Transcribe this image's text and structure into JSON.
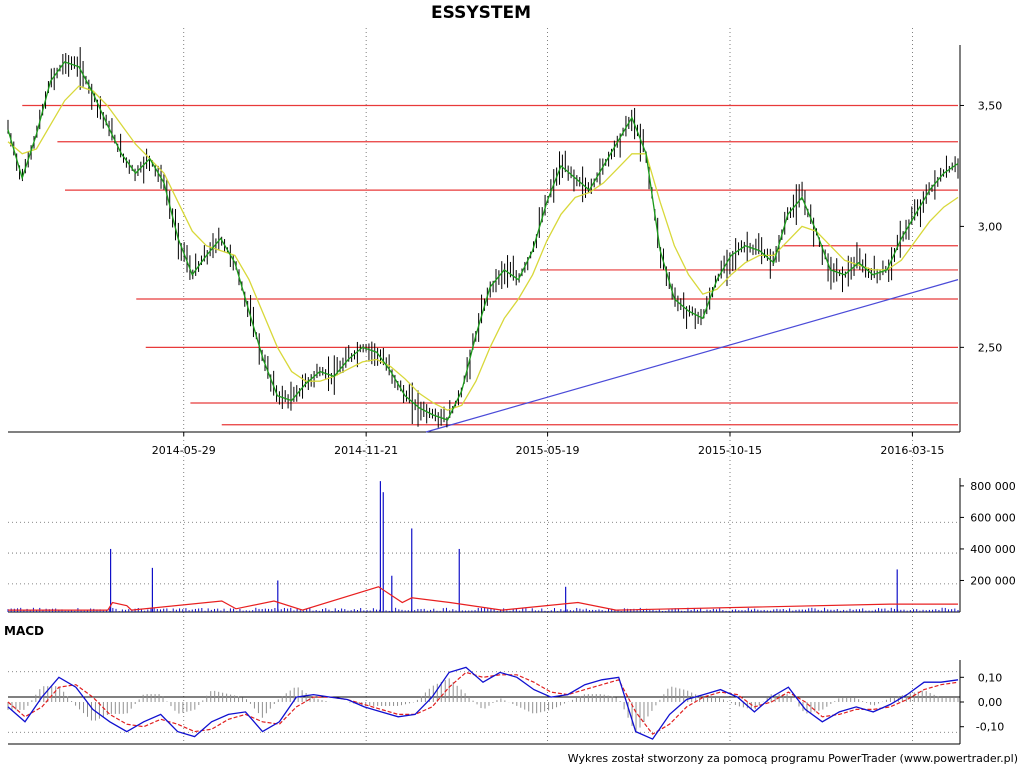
{
  "title": "ESSYSTEM",
  "footer": "Wykres został stworzony za pomocą programu PowerTrader (www.powertrader.pl)",
  "colors": {
    "candle": "#000000",
    "ma_fast": "#1a9a1a",
    "ma_slow": "#d8d83a",
    "level_line": "#e83a3a",
    "trend_line": "#4a4ad8",
    "volume": "#1010c8",
    "volume_avg": "#e82020",
    "macd_line": "#1010d0",
    "macd_signal": "#e02020",
    "histogram": "#909090",
    "grid": "#606060"
  },
  "chart_data": [
    {
      "type": "line",
      "pane": "price",
      "title": "ESSYSTEM",
      "x_ticks": [
        "2014-05-29",
        "2014-11-21",
        "2015-05-19",
        "2015-10-15",
        "2016-03-15"
      ],
      "y_ticks": [
        "3,50",
        "3,00",
        "2,50"
      ],
      "ylim": [
        2.15,
        3.75
      ],
      "grid": "vertical dotted",
      "series": [
        {
          "values": [
            3.4,
            3.2,
            3.38,
            3.6,
            3.68,
            3.66,
            3.55,
            3.42,
            3.3,
            3.22,
            3.28,
            3.18,
            2.95,
            2.8,
            2.88,
            2.95,
            2.85,
            2.65,
            2.45,
            2.3,
            2.28,
            2.35,
            2.4,
            2.38,
            2.45,
            2.5,
            2.48,
            2.4,
            2.3,
            2.25,
            2.22,
            2.2,
            2.32,
            2.55,
            2.75,
            2.82,
            2.78,
            2.9,
            3.1,
            3.25,
            3.2,
            3.15,
            3.25,
            3.35,
            3.45,
            3.3,
            2.9,
            2.7,
            2.65,
            2.62,
            2.78,
            2.88,
            2.92,
            2.9,
            2.85,
            3.05,
            3.12,
            2.98,
            2.82,
            2.8,
            2.85,
            2.8,
            2.82,
            2.95,
            3.05,
            3.15,
            3.22,
            3.26
          ]
        },
        {
          "values": [
            3.35,
            3.3,
            3.32,
            3.42,
            3.52,
            3.58,
            3.56,
            3.5,
            3.42,
            3.34,
            3.28,
            3.22,
            3.1,
            2.98,
            2.92,
            2.9,
            2.88,
            2.78,
            2.64,
            2.5,
            2.4,
            2.36,
            2.36,
            2.38,
            2.41,
            2.44,
            2.45,
            2.42,
            2.37,
            2.31,
            2.27,
            2.24,
            2.26,
            2.36,
            2.5,
            2.62,
            2.7,
            2.8,
            2.94,
            3.05,
            3.12,
            3.14,
            3.18,
            3.24,
            3.3,
            3.3,
            3.1,
            2.92,
            2.8,
            2.72,
            2.74,
            2.8,
            2.85,
            2.88,
            2.88,
            2.94,
            3.0,
            2.98,
            2.92,
            2.86,
            2.84,
            2.82,
            2.82,
            2.86,
            2.94,
            3.02,
            3.08,
            3.12
          ]
        }
      ],
      "horizontal_levels": [
        3.5,
        3.35,
        3.15,
        2.7,
        2.5,
        2.27,
        2.18
      ],
      "support_levels_partial": [
        2.92,
        2.82
      ]
    },
    {
      "type": "bar",
      "pane": "volume",
      "y_ticks": [
        "800 000",
        "600 000",
        "400 000",
        "200 000"
      ],
      "ylim": [
        0,
        850000
      ],
      "spikes": [
        {
          "t": 0.108,
          "v": 400000
        },
        {
          "t": 0.152,
          "v": 280000
        },
        {
          "t": 0.284,
          "v": 200000
        },
        {
          "t": 0.392,
          "v": 830000
        },
        {
          "t": 0.395,
          "v": 760000
        },
        {
          "t": 0.404,
          "v": 230000
        },
        {
          "t": 0.425,
          "v": 530000
        },
        {
          "t": 0.475,
          "v": 400000
        },
        {
          "t": 0.587,
          "v": 160000
        },
        {
          "t": 0.936,
          "v": 270000
        }
      ],
      "base_volume": 15000
    },
    {
      "type": "line",
      "pane": "macd",
      "title": "MACD",
      "y_ticks": [
        "0,10",
        "0,00",
        "-0,10"
      ],
      "ylim": [
        -0.17,
        0.17
      ],
      "series": [
        {
          "values": [
            -0.02,
            -0.08,
            0.02,
            0.1,
            0.06,
            -0.03,
            -0.08,
            -0.12,
            -0.08,
            -0.05,
            -0.12,
            -0.14,
            -0.08,
            -0.05,
            -0.04,
            -0.12,
            -0.08,
            0.02,
            0.03,
            0.02,
            0.01,
            -0.02,
            -0.04,
            -0.06,
            -0.05,
            0.02,
            0.12,
            0.14,
            0.08,
            0.12,
            0.1,
            0.05,
            0.02,
            0.03,
            0.07,
            0.09,
            0.1,
            -0.12,
            -0.15,
            -0.05,
            0.01,
            0.03,
            0.05,
            0.02,
            -0.04,
            0.02,
            0.06,
            -0.03,
            -0.08,
            -0.04,
            -0.02,
            -0.04,
            -0.01,
            0.03,
            0.08,
            0.08,
            0.09
          ]
        },
        {
          "values": [
            0.0,
            -0.06,
            -0.02,
            0.06,
            0.07,
            0.02,
            -0.05,
            -0.09,
            -0.1,
            -0.07,
            -0.09,
            -0.12,
            -0.11,
            -0.07,
            -0.05,
            -0.08,
            -0.09,
            -0.02,
            0.02,
            0.02,
            0.01,
            -0.01,
            -0.03,
            -0.05,
            -0.05,
            -0.02,
            0.06,
            0.12,
            0.1,
            0.11,
            0.11,
            0.08,
            0.04,
            0.03,
            0.05,
            0.07,
            0.09,
            -0.04,
            -0.13,
            -0.09,
            -0.02,
            0.02,
            0.04,
            0.03,
            -0.02,
            0.0,
            0.04,
            0.0,
            -0.06,
            -0.05,
            -0.03,
            -0.03,
            -0.02,
            0.01,
            0.05,
            0.07,
            0.08
          ]
        }
      ]
    }
  ]
}
